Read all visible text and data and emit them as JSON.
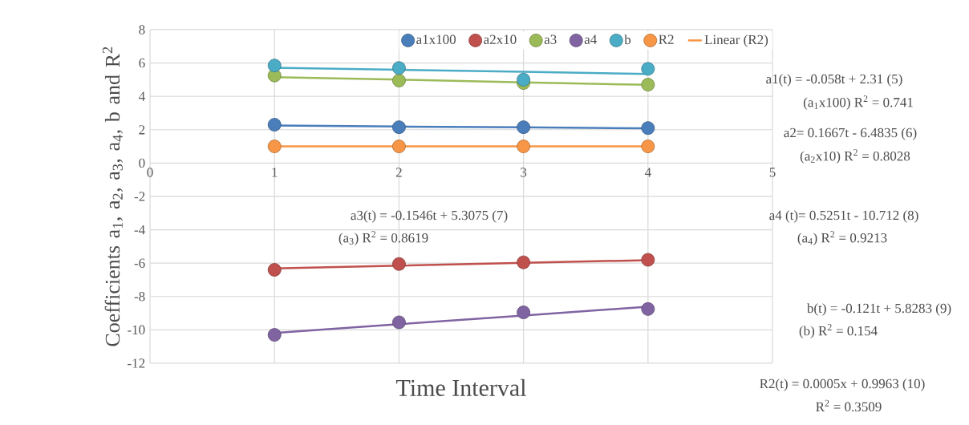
{
  "chart_data": {
    "type": "scatter",
    "xlabel": "Time Interval",
    "ylabel": "Coefficients a$_{1}$, a$_{2}$, a$_{3}$, a$_{4}$, b and R$^{2}$",
    "x": [
      1,
      2,
      3,
      4
    ],
    "xlim": [
      0,
      5
    ],
    "xticks": [
      0,
      1,
      2,
      3,
      4,
      5
    ],
    "ylim": [
      -12,
      8
    ],
    "yticks": [
      -12,
      -10,
      -8,
      -6,
      -4,
      -2,
      0,
      2,
      4,
      6,
      8
    ],
    "grid": true,
    "legend": "top",
    "marker": "circle",
    "series": [
      {
        "name": "a1x100",
        "color": "#4a7ebb",
        "values": [
          2.3,
          2.15,
          2.15,
          2.1
        ]
      },
      {
        "name": "a2x10",
        "color": "#c0504d",
        "values": [
          -6.4,
          -6.05,
          -5.95,
          -5.8
        ]
      },
      {
        "name": "a3",
        "color": "#9bbb59",
        "values": [
          5.25,
          4.95,
          4.8,
          4.7
        ]
      },
      {
        "name": "a4",
        "color": "#8064a2",
        "values": [
          -10.3,
          -9.55,
          -8.95,
          -8.75
        ]
      },
      {
        "name": "b",
        "color": "#4bacc6",
        "values": [
          5.85,
          5.7,
          5.0,
          5.65
        ]
      },
      {
        "name": "R2",
        "color": "#f79646",
        "values": [
          1,
          1,
          1,
          1
        ]
      },
      {
        "type": "line",
        "marker": "none",
        "color": "#4a7ebb",
        "values": [
          2.25,
          2.19,
          2.14,
          2.08
        ]
      },
      {
        "type": "line",
        "marker": "none",
        "color": "#c0504d",
        "values": [
          -6.32,
          -6.15,
          -5.98,
          -5.82
        ]
      },
      {
        "type": "line",
        "marker": "none",
        "color": "#9bbb59",
        "values": [
          5.15,
          5.0,
          4.84,
          4.69
        ]
      },
      {
        "type": "line",
        "marker": "none",
        "color": "#8064a2",
        "values": [
          -10.19,
          -9.66,
          -9.14,
          -8.61
        ]
      },
      {
        "type": "line",
        "marker": "none",
        "color": "#4bacc6",
        "values": [
          5.71,
          5.59,
          5.47,
          5.34
        ]
      },
      {
        "name": "Linear (R2)",
        "type": "line",
        "marker": "none",
        "color": "#f79646",
        "values": [
          1.0,
          1.0,
          1.0,
          1.0
        ]
      }
    ],
    "annotations": [
      "a1(t) = -0.058t + 2.31      (5)",
      "(a$_{1}$x100)    R$^{2}$ = 0.741",
      "a2= 0.1667t - 6.4835      (6)",
      "(a$_{2}$x10)   R$^{2}$ = 0.8028",
      "a3(t) = -0.1546t + 5.3075      (7)",
      "(a$_{3}$)     R$^{2}$ = 0.8619",
      "a4 (t)= 0.5251t - 10.712      (8)",
      "(a$_{4}$) R$^{2}$ = 0.9213",
      "b(t) = -0.121t + 5.8283     (9)",
      "(b) R$^{2}$ = 0.154",
      "R2(t) = 0.0005x + 0.9963  (10)",
      "R$^{2}$ = 0.3509"
    ]
  }
}
